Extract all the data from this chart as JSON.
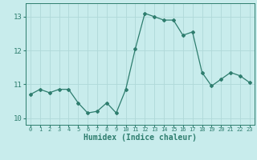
{
  "x": [
    0,
    1,
    2,
    3,
    4,
    5,
    6,
    7,
    8,
    9,
    10,
    11,
    12,
    13,
    14,
    15,
    16,
    17,
    18,
    19,
    20,
    21,
    22,
    23
  ],
  "y": [
    10.7,
    10.85,
    10.75,
    10.85,
    10.85,
    10.45,
    10.15,
    10.2,
    10.45,
    10.15,
    10.85,
    12.05,
    13.1,
    13.0,
    12.9,
    12.9,
    12.45,
    12.55,
    11.35,
    10.95,
    11.15,
    11.35,
    11.25,
    11.05
  ],
  "line_color": "#2e7d6e",
  "marker": "D",
  "marker_size": 2.0,
  "bg_color": "#c8ecec",
  "grid_color": "#b0d8d8",
  "xlabel": "Humidex (Indice chaleur)",
  "xlim": [
    -0.5,
    23.5
  ],
  "ylim": [
    9.8,
    13.4
  ],
  "yticks": [
    10,
    11,
    12,
    13
  ],
  "xticks": [
    0,
    1,
    2,
    3,
    4,
    5,
    6,
    7,
    8,
    9,
    10,
    11,
    12,
    13,
    14,
    15,
    16,
    17,
    18,
    19,
    20,
    21,
    22,
    23
  ],
  "tick_color": "#2e7d6e",
  "label_color": "#2e7d6e",
  "font_size_x": 5.0,
  "font_size_y": 6.5,
  "font_size_xlabel": 7.0
}
